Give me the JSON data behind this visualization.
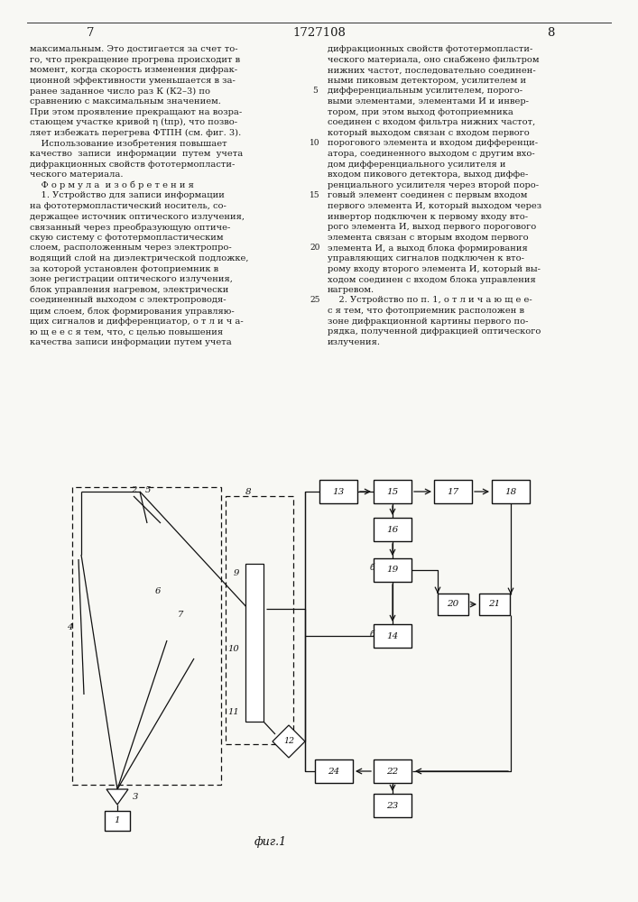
{
  "page_left": "7",
  "patent_num": "1727108",
  "page_right": "8",
  "fig_label": "фиг.1",
  "bg": "#f8f8f4",
  "tc": "#1a1a1a",
  "lc_text": "максимальным. Это достигается за счет то-\nго, что прекращение прогрева происходит в\nмомент, когда скорость изменения дифрак-\nционной эффективности уменьшается в за-\nранее заданное число раз К (К2–3) по\nсравнению с максимальным значением.\nПри этом проявление прекращают на возра-\nстающем участке кривой η (tпр), что позво-\nляет избежать перегрева ФТПН (см. фиг. 3).\n    Использование изобретения повышает\nкачество  записи  информации  путем  учета\nдифракционных свойств фототермопласти-\nческого материала.\n    Ф о р м у л а  и з о б р е т е н и я\n    1. Устройство для записи информации\nна фототермопластический носитель, со-\nдержащее источник оптического излучения,\nсвязанный через преобразующую оптиче-\nскую систему с фототермопластическим\nслоем, расположенным через электропро-\nводящий слой на диэлектрической подложке,\nза которой установлен фотоприемник в\nзоне регистрации оптического излучения,\nблок управления нагревом, электрически\nсоединенный выходом с электропроводя-\nщим слоем, блок формирования управляю-\nщих сигналов и дифференциатор, о т л и ч а-\nю щ е е с я тем, что, с целью повышения\nкачества записи информации путем учета",
  "rc_text": "дифракционных свойств фототермопласти-\nческого материала, оно снабжено фильтром\nнижних частот, последовательно соединен-\nными пиковым детектором, усилителем и\nдифференциальным усилителем, порого-\nвыми элементами, элементами И и инвер-\nтором, при этом выход фотоприемника\nсоединен с входом фильтра нижних частот,\nкоторый выходом связан с входом первого\nпорогового элемента и входом дифференци-\nатора, соединенного выходом с другим вхо-\nдом дифференциального усилителя и\nвходом пикового детектора, выход диффе-\nренциального усилителя через второй поро-\nговый элемент соединен с первым входом\nпервого элемента И, который выходом через\nинвертор подключен к первому входу вто-\nрого элемента И, выход первого порогового\nэлемента связан с вторым входом первого\nэлемента И, а выход блока формирования\nуправляющих сигналов подключен к вто-\nрому входу второго элемента И, который вы-\nходом соединен с входом блока управления\nнагревом.\n    2. Устройство по п. 1, о т л и ч а ю щ е е-\nс я тем, что фотоприемник расположен в\nзоне дифракционной картины первого по-\nрядка, полученной дифракцией оптического\nизлучения."
}
